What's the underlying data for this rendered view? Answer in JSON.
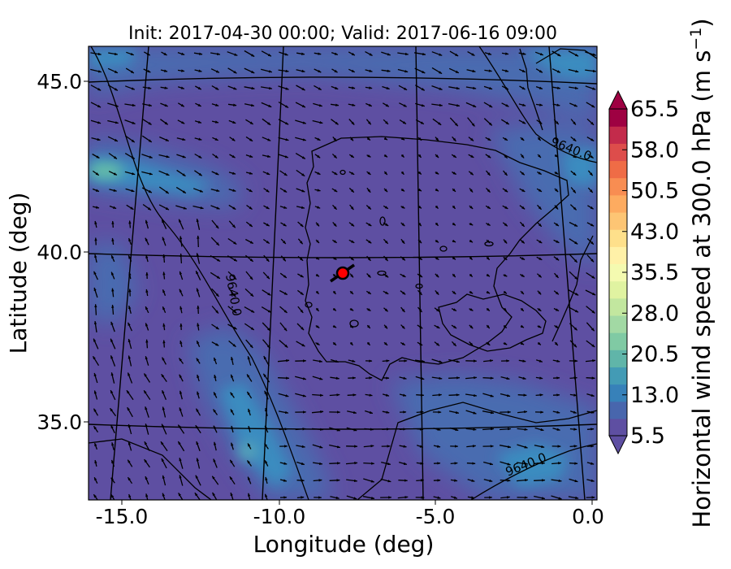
{
  "title": "Init: 2017-04-30 00:00; Valid: 2017-06-16 09:00",
  "map": {
    "xlabel": "Longitude (deg)",
    "ylabel": "Latitude (deg)",
    "x_ticks": [
      "-15.0",
      "-10.0",
      "-5.0",
      "0.0"
    ],
    "y_ticks": [
      "45.0",
      "40.0",
      "35.0"
    ],
    "lon_range": [
      -16.0,
      0.3
    ],
    "lat_range": [
      32.8,
      46.0
    ],
    "contour_labels": [
      "9640.0",
      "9640.0",
      "9640.0"
    ],
    "marker": {
      "name": "site marker",
      "color": "#ff0000",
      "lon": -7.6,
      "lat": 39.4
    },
    "field_colors": {
      "background": "#5e4fa2",
      "moderate": "#4a6cb0",
      "strong": "#3a8cc0",
      "max": "#6cc4a4"
    }
  },
  "colorbar": {
    "label_main": "Horizontal wind speed at 300.0 hPa (m s",
    "label_exp": "−1",
    "label_end": ")",
    "ticks": [
      "65.5",
      "58.0",
      "50.5",
      "43.0",
      "35.5",
      "28.0",
      "20.5",
      "13.0",
      "5.5"
    ],
    "colors": [
      "#5e4fa2",
      "#4866ad",
      "#3781b9",
      "#439bb5",
      "#60b5a9",
      "#80caa4",
      "#a2d9a4",
      "#c2e79f",
      "#e0f3a1",
      "#f4fab0",
      "#fff1a8",
      "#fee08b",
      "#fdc574",
      "#fdab60",
      "#f88d52",
      "#ef6c46",
      "#dd4d4b",
      "#c32b4b",
      "#9e0142"
    ],
    "min_extend_color": "#5e4fa2",
    "max_extend_color": "#9e0142"
  }
}
